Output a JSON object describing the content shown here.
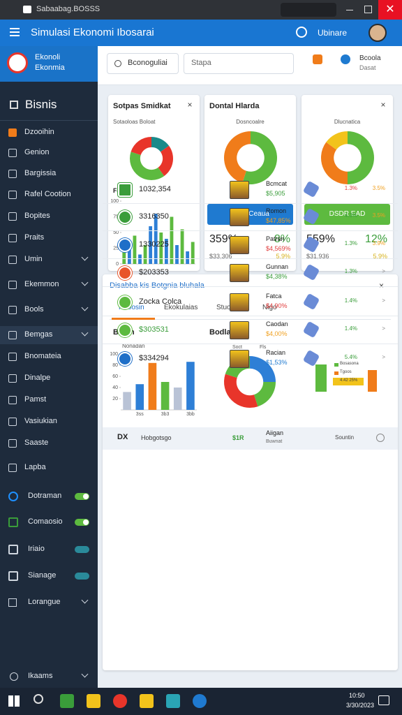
{
  "window": {
    "title": "Sabaabag.BOSSS"
  },
  "header": {
    "title": "Simulasi Ekonomi Ibosarai",
    "user": "Ubinare"
  },
  "sidebar": {
    "logo": [
      "Ekonoli",
      "Ekonmia"
    ],
    "heading": "Bisnis",
    "items": [
      {
        "label": "Dzooihin",
        "chevron": false
      },
      {
        "label": "Genion",
        "chevron": false
      },
      {
        "label": "Bargissia",
        "chevron": false
      },
      {
        "label": "Rafel Cootion",
        "chevron": false
      },
      {
        "label": "Bopites",
        "chevron": false
      },
      {
        "label": "Praits",
        "chevron": false
      },
      {
        "label": "Umin",
        "chevron": true
      },
      {
        "label": "Ekemmon",
        "chevron": true
      },
      {
        "label": "Bools",
        "chevron": true
      },
      {
        "label": "Bemgas",
        "chevron": true
      },
      {
        "label": "Bnomateia",
        "chevron": false
      },
      {
        "label": "Dinalpe",
        "chevron": false
      },
      {
        "label": "Pamst",
        "chevron": false
      },
      {
        "label": "Vasiukian",
        "chevron": false
      },
      {
        "label": "Saaste",
        "chevron": false
      },
      {
        "label": "Lapba",
        "chevron": false
      }
    ],
    "toggles": [
      {
        "label": "Dotraman",
        "on": true
      },
      {
        "label": "Comaosio",
        "on": true
      },
      {
        "label": "Iriaio",
        "on": false
      },
      {
        "label": "Sianage",
        "on": false
      }
    ],
    "more": "Lorangue",
    "footer": "Ikaams"
  },
  "topbar": {
    "search": "Bconoguliai",
    "field": "Stapa",
    "notif": "Bcoola",
    "notif_sub": "Dasat"
  },
  "cards": [
    {
      "title": "Sotpas Smidkat",
      "subtitle": "Sotaoloas Boloat",
      "donut": {
        "type": "pie",
        "values": [
          15,
          25,
          40,
          20
        ],
        "colors": [
          "#1a8a8a",
          "#e8352a",
          "#5dba3f",
          "#e8352a"
        ]
      },
      "chart_title": "Faos",
      "bars": {
        "type": "bar",
        "values": [
          20,
          35,
          45,
          15,
          30,
          60,
          80,
          50,
          40,
          75,
          30,
          55,
          20,
          35
        ],
        "colors": [
          "#5dba3f",
          "#2e7fd6",
          "#5dba3f",
          "#2e7fd6",
          "#5dba3f",
          "#2e7fd6",
          "#2e7fd6",
          "#5dba3f",
          "#2e7fd6",
          "#5dba3f",
          "#2e7fd6",
          "#5dba3f",
          "#2e7fd6",
          "#5dba3f"
        ],
        "ylim": [
          0,
          100
        ],
        "yticks": [
          0,
          25,
          50,
          75,
          100
        ]
      }
    },
    {
      "title": "Dontal Hlarda",
      "subtitle": "Dosncoalre",
      "donut": {
        "type": "pie",
        "values": [
          55,
          45
        ],
        "colors": [
          "#5dba3f",
          "#f07c1a"
        ]
      },
      "button": "Mata Ceaua",
      "button_color": "#1f7ad0",
      "stat": "359%",
      "stat2": "8%",
      "sub": "$33,306",
      "sub2": "5.9%"
    },
    {
      "title": "",
      "subtitle": "Dlucnatica",
      "donut": {
        "type": "pie",
        "values": [
          50,
          35,
          15
        ],
        "colors": [
          "#5dba3f",
          "#f07c1a",
          "#f2c31b"
        ]
      },
      "button": "DSDR EAD",
      "button_color": "#5dba3f",
      "stat": "559%",
      "stat2": "12%",
      "sub": "$31,936",
      "sub2": "5.9%"
    }
  ],
  "panel": {
    "title": "Disabba kis Botgnia bluhala",
    "tabs": [
      "Rooosin",
      "Ekokulaias",
      "Stuotias",
      "Nigo"
    ],
    "left": {
      "title": "Bisnn",
      "subtitle": "Nonadan",
      "chart": {
        "type": "bar",
        "categories": [
          null,
          "3ss",
          null,
          "3b3",
          null,
          "3bb"
        ],
        "values": [
          32,
          46,
          84,
          50,
          40,
          86
        ],
        "colors": [
          "#b9c3d6",
          "#2e7fd6",
          "#f07c1a",
          "#5dba3f",
          "#b9c3d6",
          "#2e7fd6"
        ],
        "ylim": [
          0,
          100
        ],
        "yticks": [
          20,
          40,
          60,
          80,
          100
        ]
      }
    },
    "right": {
      "title": "Bodlate",
      "label": "Soct",
      "label2": "Fls",
      "donut": {
        "type": "pie",
        "values": [
          25,
          20,
          35,
          20
        ],
        "colors": [
          "#2e7fd6",
          "#5dba3f",
          "#e8352a",
          "#5dba3f"
        ]
      },
      "mini": {
        "type": "bar",
        "values": [
          78,
          62
        ],
        "colors": [
          "#5dba3f",
          "#f07c1a"
        ],
        "ylim": [
          0,
          100
        ],
        "legend": [
          "Bosasona",
          "Tgoos",
          "4.42 25%"
        ]
      }
    }
  },
  "table": {
    "header": [
      "DX",
      "Hobgotsgo",
      "$1R",
      "Aiigan",
      "Buwnat",
      "Sountin"
    ],
    "rows": [
      {
        "id": "1032,354",
        "icon": "#3a9d3a",
        "id_color": "#222",
        "name": "Bcmcat",
        "price": "$5,905",
        "price_color": "#3a9d3a",
        "pct": "1.3%",
        "pct_color": "#e03c3c",
        "pct2": "3.5%",
        "pct2_color": "#f0a020"
      },
      {
        "id": "3316350",
        "icon": "#3a9d3a",
        "id_color": "#222",
        "name": "Romon",
        "price": "$47,85%",
        "price_color": "#f0a020",
        "pct": "4.3%",
        "pct_color": "#3a9d3a",
        "pct2": "3.5%",
        "pct2_color": "#f0a020"
      },
      {
        "id": "1330225",
        "icon": "#1f6fc8",
        "id_color": "#222",
        "name": "Patran",
        "price": "$4,569%",
        "price_color": "#e03c3c",
        "pct": "1.3%",
        "pct_color": "#3a9d3a",
        "pct2": "3.9%",
        "pct2_color": "#f0a020"
      },
      {
        "id": "$203353",
        "icon": "#e8552a",
        "id_color": "#222",
        "name": "Gunnan",
        "price": "$4,38%",
        "price_color": "#3a9d3a",
        "pct": "1.3%",
        "pct_color": "#3a9d3a",
        "pct2": ">",
        "pct2_color": "#888"
      },
      {
        "id": "Zocka Colca",
        "icon": "#5dba3f",
        "id_color": "#222",
        "name": "Fatca",
        "price": "$4,90%",
        "price_color": "#e03c3c",
        "pct": "1.4%",
        "pct_color": "#3a9d3a",
        "pct2": ">",
        "pct2_color": "#888"
      },
      {
        "id": "$303531",
        "icon": "#5dba3f",
        "id_color": "#3a9d3a",
        "name": "Caodan",
        "price": "$4,00%",
        "price_color": "#f0a020",
        "pct": "1.4%",
        "pct_color": "#3a9d3a",
        "pct2": ">",
        "pct2_color": "#888"
      },
      {
        "id": "$334294",
        "icon": "#1f6fc8",
        "id_color": "#222",
        "name": "Racian",
        "price": "$1,53%",
        "price_color": "#1f7ad0",
        "pct": "5.4%",
        "pct_color": "#3a9d3a",
        "pct2": ">",
        "pct2_color": "#888"
      }
    ]
  },
  "taskbar": {
    "time": "10:50",
    "date": "3/30/2023"
  }
}
